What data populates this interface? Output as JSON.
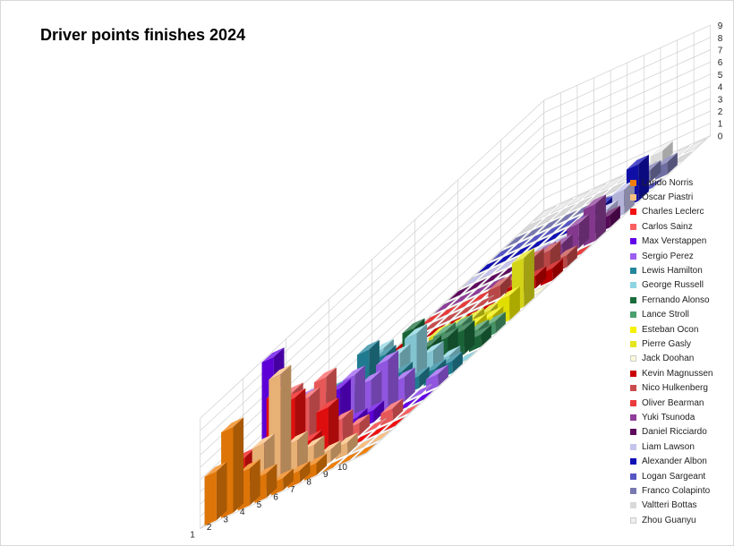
{
  "chart_data": {
    "type": "bar",
    "subtype": "3d-column",
    "title": "Driver points finishes 2024",
    "xlabel": "",
    "ylabel": "",
    "categories": [
      "1",
      "2",
      "3",
      "4",
      "5",
      "6",
      "7",
      "8",
      "9",
      "10"
    ],
    "zlim": [
      0,
      9
    ],
    "z_ticks": [
      "0",
      "1",
      "2",
      "3",
      "4",
      "5",
      "6",
      "7",
      "8",
      "9"
    ],
    "gridlines": true,
    "legend_position": "right",
    "series": [
      {
        "name": "Lando Norris",
        "color": "#f07f09",
        "values": [
          4,
          7,
          3,
          2,
          1,
          1,
          1,
          0,
          0,
          0
        ]
      },
      {
        "name": "Oscar Piastri",
        "color": "#fbbf7f",
        "values": [
          2,
          1,
          4,
          9,
          3,
          2,
          1,
          1,
          0,
          0
        ]
      },
      {
        "name": "Charles Leclerc",
        "color": "#f20f0f",
        "values": [
          3,
          3,
          7,
          6,
          2,
          4,
          0,
          0,
          0,
          0
        ]
      },
      {
        "name": "Carlos Sainz",
        "color": "#fa6060",
        "values": [
          2,
          1,
          6,
          5,
          6,
          2,
          1,
          0,
          1,
          0
        ]
      },
      {
        "name": "Max Verstappen",
        "color": "#6400e8",
        "values": [
          9,
          5,
          2,
          1,
          4,
          1,
          1,
          0,
          0,
          0
        ]
      },
      {
        "name": "Sergio Perez",
        "color": "#9d5ef2",
        "values": [
          0,
          4,
          1,
          1,
          4,
          3,
          4,
          2,
          0,
          1
        ]
      },
      {
        "name": "Lewis Hamilton",
        "color": "#23869c",
        "values": [
          2,
          1,
          3,
          2,
          5,
          4,
          2,
          1,
          1,
          1
        ]
      },
      {
        "name": "George Russell",
        "color": "#8ed5e3",
        "values": [
          2,
          1,
          2,
          3,
          4,
          3,
          4,
          2,
          1,
          0
        ]
      },
      {
        "name": "Fernando Alonso",
        "color": "#1b6c3c",
        "values": [
          0,
          0,
          0,
          0,
          1,
          4,
          2,
          2,
          2,
          1
        ]
      },
      {
        "name": "Lance Stroll",
        "color": "#4a9f6e",
        "values": [
          0,
          0,
          0,
          0,
          0,
          1,
          2,
          2,
          1,
          1
        ]
      },
      {
        "name": "Esteban Ocon",
        "color": "#f4f000",
        "values": [
          0,
          0,
          0,
          0,
          0,
          0,
          1,
          1,
          1,
          2
        ]
      },
      {
        "name": "Pierre Gasly",
        "color": "#e5e51a",
        "values": [
          0,
          0,
          0,
          0,
          1,
          1,
          1,
          1,
          1,
          4
        ]
      },
      {
        "name": "Jack Doohan",
        "color": "#fdf9d8",
        "values": [
          0,
          0,
          0,
          0,
          0,
          0,
          0,
          0,
          0,
          0
        ]
      },
      {
        "name": "Kevin Magnussen",
        "color": "#c90000",
        "values": [
          0,
          0,
          0,
          0,
          0,
          0,
          0,
          1,
          1,
          1
        ]
      },
      {
        "name": "Nico Hulkenberg",
        "color": "#c94c4c",
        "values": [
          0,
          0,
          0,
          0,
          0,
          1,
          1,
          2,
          2,
          1
        ]
      },
      {
        "name": "Oliver Bearman",
        "color": "#e93b3b",
        "values": [
          0,
          0,
          0,
          0,
          0,
          0,
          1,
          1,
          0,
          0
        ]
      },
      {
        "name": "Yuki Tsunoda",
        "color": "#8e3d99",
        "values": [
          0,
          0,
          0,
          0,
          0,
          0,
          1,
          1,
          2,
          3
        ]
      },
      {
        "name": "Daniel Ricciardo",
        "color": "#5e0a5e",
        "values": [
          0,
          0,
          0,
          0,
          0,
          0,
          0,
          0,
          1,
          1
        ]
      },
      {
        "name": "Liam Lawson",
        "color": "#c4c4ec",
        "values": [
          0,
          0,
          0,
          0,
          0,
          0,
          0,
          0,
          1,
          2
        ]
      },
      {
        "name": "Alexander Albon",
        "color": "#1010b5",
        "values": [
          0,
          0,
          0,
          0,
          0,
          0,
          0,
          1,
          1,
          3
        ]
      },
      {
        "name": "Logan Sargeant",
        "color": "#5656c4",
        "values": [
          0,
          0,
          0,
          0,
          0,
          0,
          0,
          0,
          0,
          0
        ]
      },
      {
        "name": "Franco Colapinto",
        "color": "#7878b0",
        "values": [
          0,
          0,
          0,
          0,
          0,
          0,
          0,
          0,
          1,
          1
        ]
      },
      {
        "name": "Valtteri Bottas",
        "color": "#d9d9d9",
        "values": [
          0,
          0,
          0,
          0,
          0,
          0,
          0,
          0,
          0,
          0
        ]
      },
      {
        "name": "Zhou Guanyu",
        "color": "#eeeeee",
        "values": [
          0,
          0,
          0,
          0,
          0,
          0,
          0,
          1,
          0,
          0
        ]
      }
    ]
  }
}
